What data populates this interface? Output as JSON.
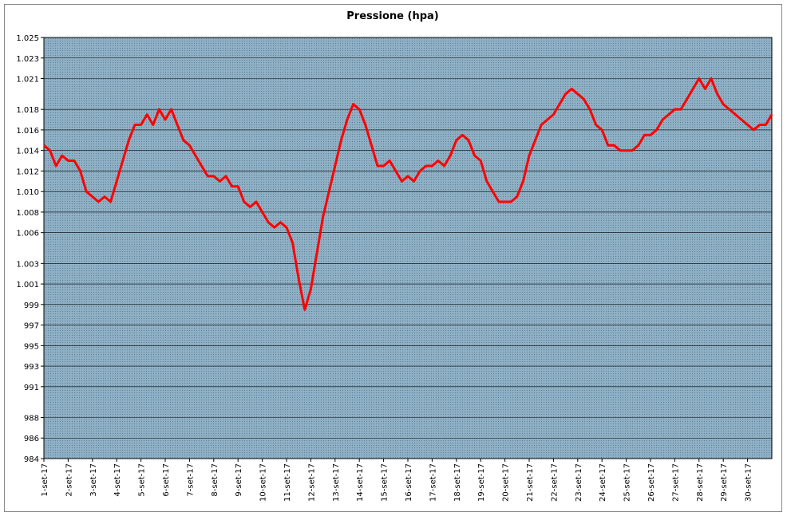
{
  "chart_data": {
    "type": "line",
    "title": "Pressione (hpa)",
    "color": "#ff0000",
    "grid": true,
    "x": [
      1,
      1.25,
      1.5,
      1.75,
      2,
      2.25,
      2.5,
      2.75,
      3,
      3.25,
      3.5,
      3.75,
      4,
      4.25,
      4.5,
      4.75,
      5,
      5.25,
      5.5,
      5.75,
      6,
      6.25,
      6.5,
      6.75,
      7,
      7.25,
      7.5,
      7.75,
      8,
      8.25,
      8.5,
      8.75,
      9,
      9.25,
      9.5,
      9.75,
      10,
      10.25,
      10.5,
      10.75,
      11,
      11.25,
      11.5,
      11.75,
      12,
      12.25,
      12.5,
      12.75,
      13,
      13.25,
      13.5,
      13.75,
      14,
      14.25,
      14.5,
      14.75,
      15,
      15.25,
      15.5,
      15.75,
      16,
      16.25,
      16.5,
      16.75,
      17,
      17.25,
      17.5,
      17.75,
      18,
      18.25,
      18.5,
      18.75,
      19,
      19.25,
      19.5,
      19.75,
      20,
      20.25,
      20.5,
      20.75,
      21,
      21.25,
      21.5,
      21.75,
      22,
      22.25,
      22.5,
      22.75,
      23,
      23.25,
      23.5,
      23.75,
      24,
      24.25,
      24.5,
      24.75,
      25,
      25.25,
      25.5,
      25.75,
      26,
      26.25,
      26.5,
      26.75,
      27,
      27.25,
      27.5,
      27.75,
      28,
      28.25,
      28.5,
      28.75,
      29,
      29.25,
      29.5,
      29.75,
      30,
      30.25,
      30.5,
      30.75,
      31
    ],
    "values": [
      1014.5,
      1014,
      1012.5,
      1013.5,
      1013,
      1013,
      1012,
      1010,
      1009.5,
      1009,
      1009.5,
      1009,
      1011,
      1013,
      1015,
      1016.5,
      1016.5,
      1017.5,
      1016.5,
      1018,
      1017,
      1018,
      1016.5,
      1015,
      1014.5,
      1013.5,
      1012.5,
      1011.5,
      1011.5,
      1011,
      1011.5,
      1010.5,
      1010.5,
      1009,
      1008.5,
      1009,
      1008,
      1007,
      1006.5,
      1007,
      1006.5,
      1005,
      1001.5,
      998.5,
      1000.5,
      1004,
      1007.5,
      1010,
      1012.5,
      1015,
      1017,
      1018.5,
      1018,
      1016.5,
      1014.5,
      1012.5,
      1012.5,
      1013,
      1012,
      1011,
      1011.5,
      1011,
      1012,
      1012.5,
      1012.5,
      1013,
      1012.5,
      1013.5,
      1015,
      1015.5,
      1015,
      1013.5,
      1013,
      1011,
      1010,
      1009,
      1009,
      1009,
      1009.5,
      1011,
      1013.5,
      1015,
      1016.5,
      1017,
      1017.5,
      1018.5,
      1019.5,
      1020,
      1019.5,
      1019,
      1018,
      1016.5,
      1016,
      1014.5,
      1014.5,
      1014,
      1014,
      1014,
      1014.5,
      1015.5,
      1015.5,
      1016,
      1017,
      1017.5,
      1018,
      1018,
      1019,
      1020,
      1021,
      1020,
      1021,
      1019.5,
      1018.5,
      1018,
      1017.5,
      1017,
      1016.5,
      1016,
      1016.5,
      1016.5,
      1017.5
    ],
    "xlim": [
      1,
      31
    ],
    "xticks": [
      {
        "value": 1,
        "label": "1-set-17"
      },
      {
        "value": 2,
        "label": "2-set-17"
      },
      {
        "value": 3,
        "label": "3-set-17"
      },
      {
        "value": 4,
        "label": "4-set-17"
      },
      {
        "value": 5,
        "label": "5-set-17"
      },
      {
        "value": 6,
        "label": "6-set-17"
      },
      {
        "value": 7,
        "label": "7-set-17"
      },
      {
        "value": 8,
        "label": "8-set-17"
      },
      {
        "value": 9,
        "label": "9-set-17"
      },
      {
        "value": 10,
        "label": "10-set-17"
      },
      {
        "value": 11,
        "label": "11-set-17"
      },
      {
        "value": 12,
        "label": "12-set-17"
      },
      {
        "value": 13,
        "label": "13-set-17"
      },
      {
        "value": 14,
        "label": "14-set-17"
      },
      {
        "value": 15,
        "label": "15-set-17"
      },
      {
        "value": 16,
        "label": "16-set-17"
      },
      {
        "value": 17,
        "label": "17-set-17"
      },
      {
        "value": 18,
        "label": "18-set-17"
      },
      {
        "value": 19,
        "label": "19-set-17"
      },
      {
        "value": 20,
        "label": "20-set-17"
      },
      {
        "value": 21,
        "label": "21-set-17"
      },
      {
        "value": 22,
        "label": "22-set-17"
      },
      {
        "value": 23,
        "label": "23-set-17"
      },
      {
        "value": 24,
        "label": "24-set-17"
      },
      {
        "value": 25,
        "label": "25-set-17"
      },
      {
        "value": 26,
        "label": "26-set-17"
      },
      {
        "value": 27,
        "label": "27-set-17"
      },
      {
        "value": 28,
        "label": "28-set-17"
      },
      {
        "value": 29,
        "label": "29-set-17"
      },
      {
        "value": 30,
        "label": "30-set-17"
      }
    ],
    "ylim": [
      984,
      1025
    ],
    "yticks": [
      984,
      986,
      988,
      991,
      993,
      995,
      997,
      999,
      {
        "value": 1001,
        "label": "1.001"
      },
      {
        "value": 1003,
        "label": "1.003"
      },
      {
        "value": 1006,
        "label": "1.006"
      },
      {
        "value": 1008,
        "label": "1.008"
      },
      {
        "value": 1010,
        "label": "1.010"
      },
      {
        "value": 1012,
        "label": "1.012"
      },
      {
        "value": 1014,
        "label": "1.014"
      },
      {
        "value": 1016,
        "label": "1.016"
      },
      {
        "value": 1018,
        "label": "1.018"
      },
      {
        "value": 1021,
        "label": "1.021"
      },
      {
        "value": 1023,
        "label": "1.023"
      },
      {
        "value": 1025,
        "label": "1.025"
      }
    ]
  }
}
